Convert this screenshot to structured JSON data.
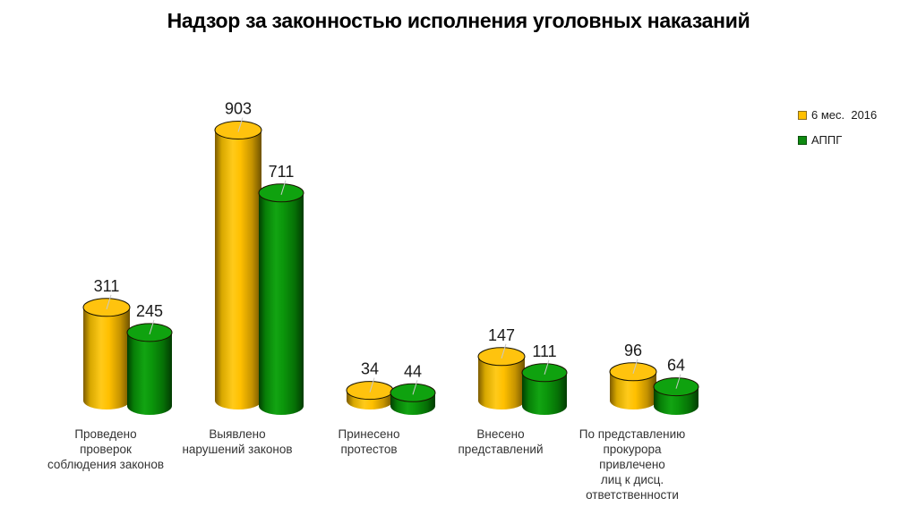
{
  "title": "Надзор за законностью исполнения уголовных наказаний",
  "legend": [
    {
      "label": "6 мес.  2016",
      "color": "#FFC000",
      "border": "#8A6D1F"
    },
    {
      "label": "АППГ",
      "color": "#0E8A10",
      "border": "#0B4F0C"
    }
  ],
  "chart_data": {
    "type": "bar",
    "subtype": "3d-cylinder",
    "title": "Надзор за законностью исполнения уголовных наказаний",
    "categories": [
      "Проведено проверок соблюдения законов",
      "Выявлено нарушений законов",
      "Принесено протестов",
      "Внесено представлений",
      "По представлению прокурора привлечено лиц к дисц. ответственности"
    ],
    "categories_lines": [
      [
        "Проведено",
        "проверок",
        "соблюдения законов"
      ],
      [
        "Выявлено",
        "нарушений законов"
      ],
      [
        "Принесено",
        "протестов"
      ],
      [
        "Внесено",
        "представлений"
      ],
      [
        "По представлению",
        "прокурора",
        "привлечено",
        "лиц к дисц.",
        "ответственности"
      ]
    ],
    "series": [
      {
        "name": "6 мес.  2016",
        "color": "#FFC000",
        "top_color": "#FFC30E",
        "shades": [
          "#7D5C00",
          "#D8A800",
          "#FFCA1A",
          "#FFC000",
          "#C49200",
          "#6E5200"
        ],
        "values": [
          311,
          903,
          34,
          147,
          96
        ]
      },
      {
        "name": "АППГ",
        "color": "#0E8A10",
        "top_color": "#0FA20F",
        "shades": [
          "#023E02",
          "#077F07",
          "#12A412",
          "#0B960B",
          "#067106",
          "#023C02"
        ],
        "values": [
          245,
          711,
          44,
          111,
          64
        ]
      }
    ],
    "ylim": [
      0,
      950
    ],
    "grid": false,
    "axes_visible": false,
    "legend_position": "right",
    "value_labels": true
  },
  "colors": {
    "background": "#FFFFFF",
    "text": "#1A1A1A",
    "category_text": "#333333",
    "leader_line": "#C8C8C8",
    "ellipse_outline": "#1A1500"
  }
}
